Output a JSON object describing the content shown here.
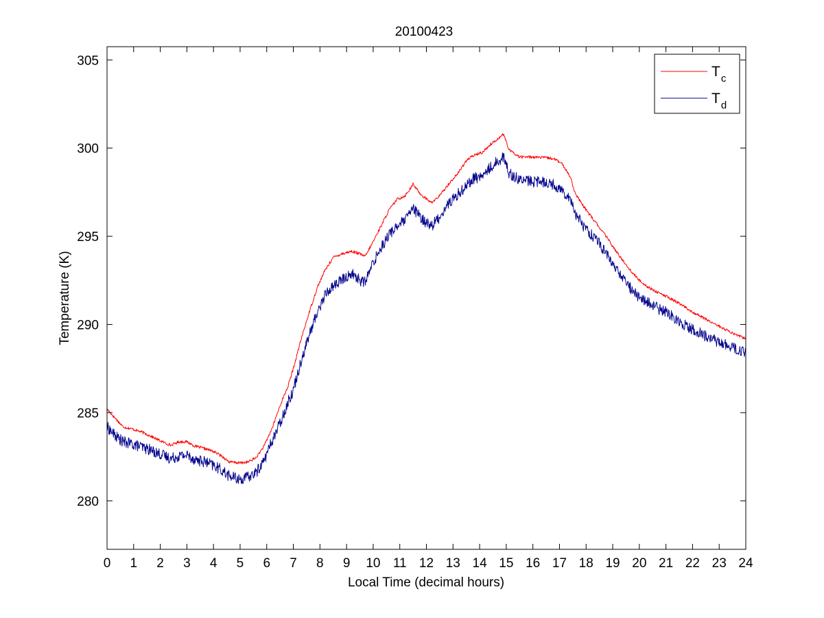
{
  "chart_data": {
    "type": "line",
    "title": "20100423",
    "xlabel": "Local Time (decimal hours)",
    "ylabel": "Temperature (K)",
    "xlim": [
      0,
      24
    ],
    "ylim": [
      277.25,
      305.75
    ],
    "xticks": [
      0,
      1,
      2,
      3,
      4,
      5,
      6,
      7,
      8,
      9,
      10,
      11,
      12,
      13,
      14,
      15,
      16,
      17,
      18,
      19,
      20,
      21,
      22,
      23,
      24
    ],
    "yticks": [
      280,
      285,
      290,
      295,
      300,
      305
    ],
    "grid": false,
    "legend_position": "top-right",
    "series": [
      {
        "name": "T",
        "subscript": "c",
        "color": "#ff0000",
        "noise": 0.08,
        "points": [
          [
            0,
            285.2
          ],
          [
            0.3,
            284.7
          ],
          [
            0.6,
            284.2
          ],
          [
            1,
            284.05
          ],
          [
            1.3,
            283.9
          ],
          [
            1.6,
            283.7
          ],
          [
            2,
            283.4
          ],
          [
            2.4,
            283.15
          ],
          [
            2.7,
            283.35
          ],
          [
            3,
            283.35
          ],
          [
            3.3,
            283.1
          ],
          [
            3.7,
            282.95
          ],
          [
            4,
            282.8
          ],
          [
            4.3,
            282.55
          ],
          [
            4.6,
            282.2
          ],
          [
            5,
            282.15
          ],
          [
            5.3,
            282.2
          ],
          [
            5.6,
            282.45
          ],
          [
            5.9,
            283.1
          ],
          [
            6.2,
            284.1
          ],
          [
            6.5,
            285.4
          ],
          [
            6.8,
            286.5
          ],
          [
            7,
            287.5
          ],
          [
            7.3,
            289.2
          ],
          [
            7.6,
            290.7
          ],
          [
            7.9,
            292.1
          ],
          [
            8.2,
            293.1
          ],
          [
            8.5,
            293.8
          ],
          [
            8.8,
            294.0
          ],
          [
            9.2,
            294.15
          ],
          [
            9.5,
            294.0
          ],
          [
            9.7,
            293.85
          ],
          [
            10,
            294.7
          ],
          [
            10.3,
            295.6
          ],
          [
            10.6,
            296.5
          ],
          [
            10.9,
            297.1
          ],
          [
            11.2,
            297.3
          ],
          [
            11.5,
            297.95
          ],
          [
            11.8,
            297.35
          ],
          [
            12.2,
            296.9
          ],
          [
            12.5,
            297.3
          ],
          [
            12.8,
            297.9
          ],
          [
            13.2,
            298.6
          ],
          [
            13.5,
            299.3
          ],
          [
            13.8,
            299.6
          ],
          [
            14.1,
            299.75
          ],
          [
            14.4,
            300.2
          ],
          [
            14.7,
            300.55
          ],
          [
            14.9,
            300.8
          ],
          [
            15.1,
            299.9
          ],
          [
            15.5,
            299.5
          ],
          [
            16,
            299.5
          ],
          [
            16.5,
            299.45
          ],
          [
            16.8,
            299.4
          ],
          [
            17.1,
            299.1
          ],
          [
            17.4,
            298.4
          ],
          [
            17.6,
            297.4
          ],
          [
            17.9,
            296.7
          ],
          [
            18.2,
            296.1
          ],
          [
            18.5,
            295.5
          ],
          [
            18.8,
            294.9
          ],
          [
            19.1,
            294.2
          ],
          [
            19.4,
            293.6
          ],
          [
            19.7,
            293.0
          ],
          [
            20,
            292.5
          ],
          [
            20.3,
            292.15
          ],
          [
            20.7,
            291.8
          ],
          [
            21,
            291.6
          ],
          [
            21.5,
            291.2
          ],
          [
            22,
            290.7
          ],
          [
            22.5,
            290.3
          ],
          [
            23,
            289.9
          ],
          [
            23.5,
            289.5
          ],
          [
            24,
            289.2
          ]
        ]
      },
      {
        "name": "T",
        "subscript": "d",
        "color": "#00008b",
        "noise": 0.32,
        "points": [
          [
            0,
            284.2
          ],
          [
            0.3,
            283.7
          ],
          [
            0.6,
            283.35
          ],
          [
            1,
            283.2
          ],
          [
            1.3,
            283.05
          ],
          [
            1.6,
            282.9
          ],
          [
            2,
            282.65
          ],
          [
            2.4,
            282.4
          ],
          [
            2.7,
            282.55
          ],
          [
            3,
            282.6
          ],
          [
            3.3,
            282.35
          ],
          [
            3.7,
            282.2
          ],
          [
            4,
            282.0
          ],
          [
            4.3,
            281.75
          ],
          [
            4.6,
            281.4
          ],
          [
            5,
            281.2
          ],
          [
            5.3,
            281.35
          ],
          [
            5.6,
            281.6
          ],
          [
            5.9,
            282.3
          ],
          [
            6.2,
            283.4
          ],
          [
            6.5,
            284.4
          ],
          [
            6.8,
            285.6
          ],
          [
            7,
            286.3
          ],
          [
            7.3,
            288.0
          ],
          [
            7.6,
            289.4
          ],
          [
            7.9,
            290.7
          ],
          [
            8.2,
            291.7
          ],
          [
            8.5,
            292.2
          ],
          [
            8.8,
            292.5
          ],
          [
            9.2,
            292.9
          ],
          [
            9.5,
            292.5
          ],
          [
            9.7,
            292.4
          ],
          [
            10,
            293.5
          ],
          [
            10.3,
            294.4
          ],
          [
            10.6,
            295.1
          ],
          [
            10.9,
            295.6
          ],
          [
            11.2,
            295.9
          ],
          [
            11.5,
            296.6
          ],
          [
            11.8,
            296.0
          ],
          [
            12.2,
            295.6
          ],
          [
            12.5,
            296.1
          ],
          [
            12.8,
            296.8
          ],
          [
            13.2,
            297.4
          ],
          [
            13.5,
            297.9
          ],
          [
            13.8,
            298.3
          ],
          [
            14.1,
            298.4
          ],
          [
            14.4,
            298.9
          ],
          [
            14.7,
            299.3
          ],
          [
            14.9,
            299.5
          ],
          [
            15.1,
            298.6
          ],
          [
            15.5,
            298.2
          ],
          [
            16,
            298.1
          ],
          [
            16.5,
            298.1
          ],
          [
            16.8,
            297.9
          ],
          [
            17.1,
            297.6
          ],
          [
            17.4,
            297.2
          ],
          [
            17.6,
            296.3
          ],
          [
            17.9,
            295.6
          ],
          [
            18.2,
            295.1
          ],
          [
            18.5,
            294.6
          ],
          [
            18.8,
            293.9
          ],
          [
            19.1,
            293.2
          ],
          [
            19.4,
            292.6
          ],
          [
            19.7,
            292.0
          ],
          [
            20,
            291.55
          ],
          [
            20.3,
            291.25
          ],
          [
            20.7,
            290.9
          ],
          [
            21,
            290.7
          ],
          [
            21.5,
            290.2
          ],
          [
            22,
            289.7
          ],
          [
            22.5,
            289.35
          ],
          [
            23,
            289.0
          ],
          [
            23.5,
            288.7
          ],
          [
            24,
            288.35
          ]
        ]
      }
    ]
  }
}
